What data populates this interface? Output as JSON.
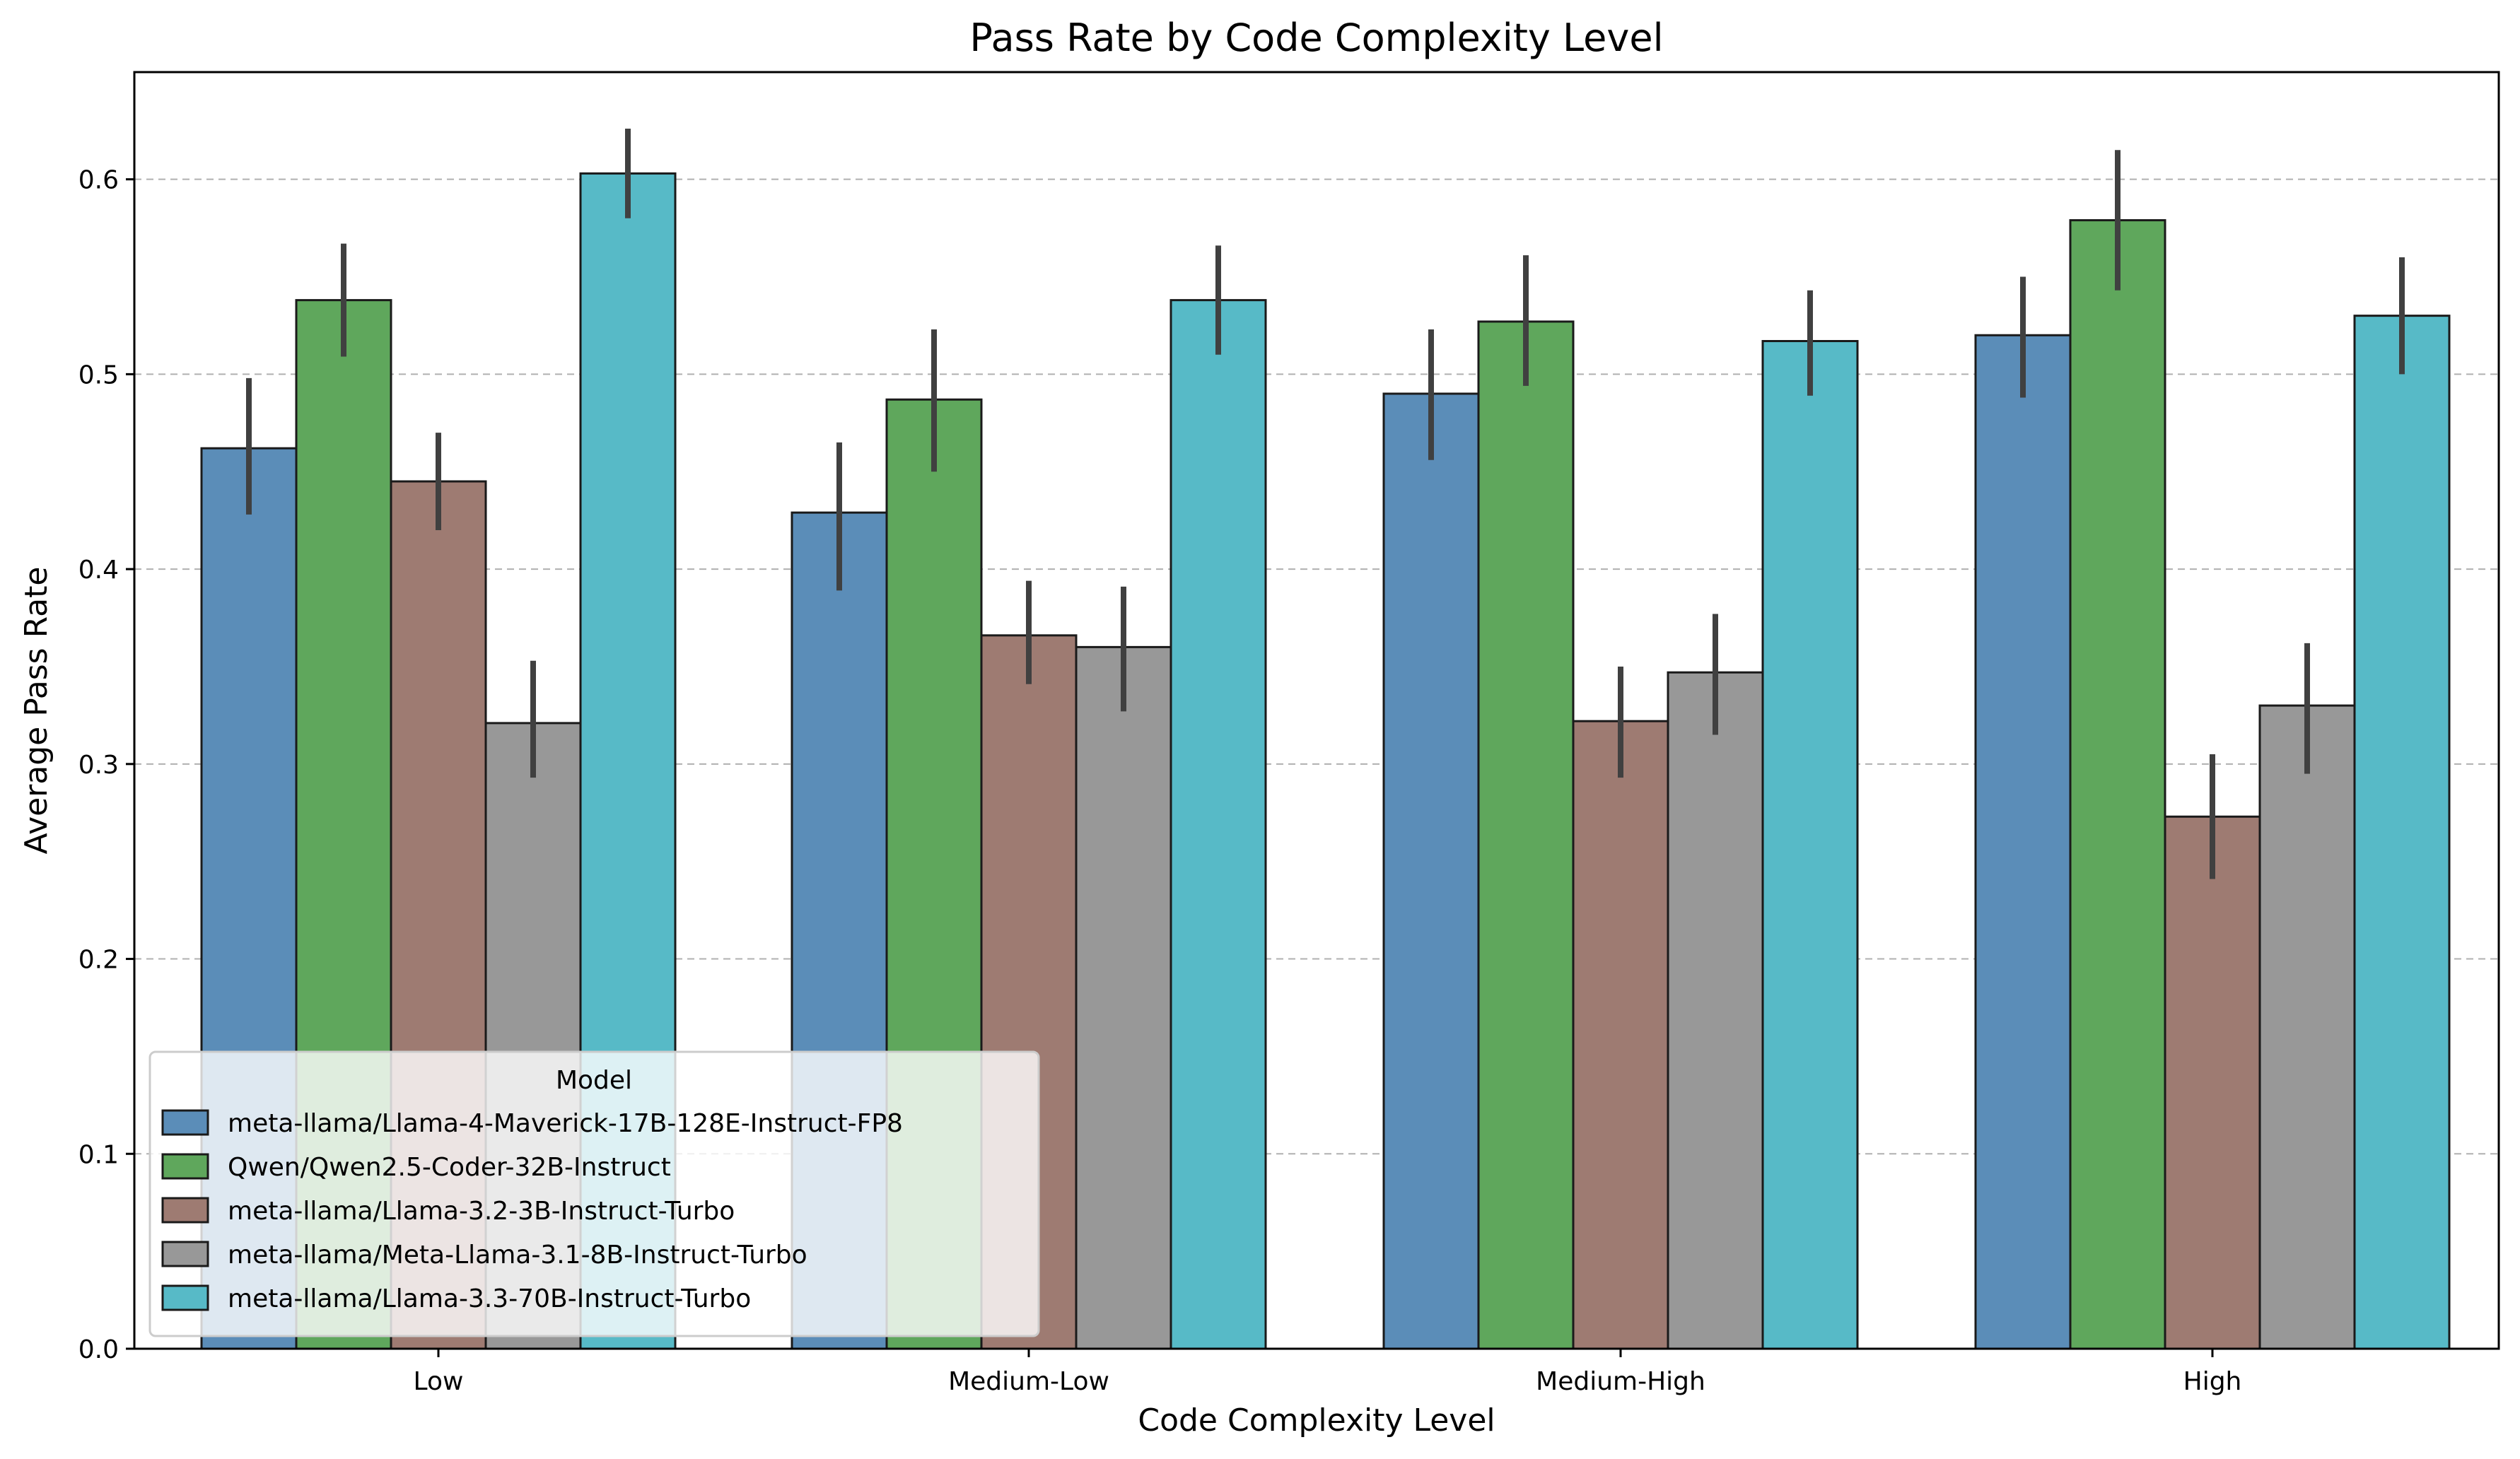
{
  "chart_data": {
    "type": "bar",
    "title": "Pass Rate by Code Complexity Level",
    "xlabel": "Code Complexity Level",
    "ylabel": "Average Pass Rate",
    "ylim": [
      0,
      0.655
    ],
    "yticks": [
      0.0,
      0.1,
      0.2,
      0.3,
      0.4,
      0.5,
      0.6
    ],
    "ytick_labels": [
      "0.0",
      "0.1",
      "0.2",
      "0.3",
      "0.4",
      "0.5",
      "0.6"
    ],
    "grid": "y-dashed",
    "categories": [
      "Low",
      "Medium-Low",
      "Medium-High",
      "High"
    ],
    "legend": {
      "title": "Model",
      "position": "lower-left"
    },
    "series": [
      {
        "name": "meta-llama/Llama-4-Maverick-17B-128E-Instruct-FP8",
        "color": "#5b8db8",
        "values": [
          0.462,
          0.429,
          0.49,
          0.52
        ],
        "err_low": [
          0.428,
          0.389,
          0.456,
          0.488
        ],
        "err_high": [
          0.498,
          0.465,
          0.523,
          0.55
        ]
      },
      {
        "name": "Qwen/Qwen2.5-Coder-32B-Instruct",
        "color": "#5fa75c",
        "values": [
          0.538,
          0.487,
          0.527,
          0.579
        ],
        "err_low": [
          0.509,
          0.45,
          0.494,
          0.543
        ],
        "err_high": [
          0.567,
          0.523,
          0.561,
          0.615
        ]
      },
      {
        "name": "meta-llama/Llama-3.2-3B-Instruct-Turbo",
        "color": "#9e7b72",
        "values": [
          0.445,
          0.366,
          0.322,
          0.273
        ],
        "err_low": [
          0.42,
          0.341,
          0.293,
          0.241
        ],
        "err_high": [
          0.47,
          0.394,
          0.35,
          0.305
        ]
      },
      {
        "name": "meta-llama/Meta-Llama-3.1-8B-Instruct-Turbo",
        "color": "#989898",
        "values": [
          0.321,
          0.36,
          0.347,
          0.33
        ],
        "err_low": [
          0.293,
          0.327,
          0.315,
          0.295
        ],
        "err_high": [
          0.353,
          0.391,
          0.377,
          0.362
        ]
      },
      {
        "name": "meta-llama/Llama-3.3-70B-Instruct-Turbo",
        "color": "#57bac7",
        "values": [
          0.603,
          0.538,
          0.517,
          0.53
        ],
        "err_low": [
          0.58,
          0.51,
          0.489,
          0.5
        ],
        "err_high": [
          0.626,
          0.566,
          0.543,
          0.56
        ]
      }
    ]
  }
}
